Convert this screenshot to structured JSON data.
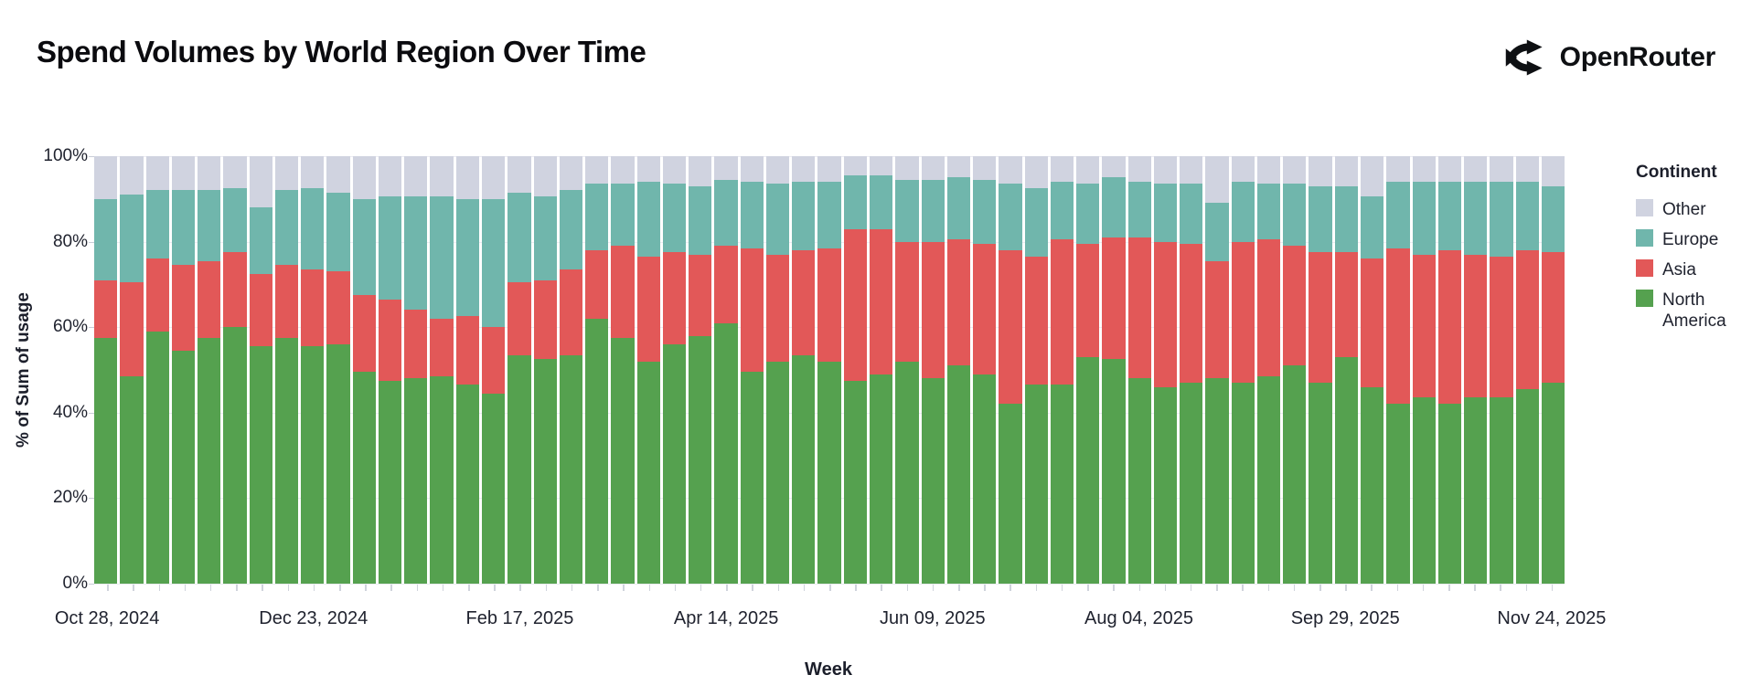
{
  "header": {
    "title": "Spend Volumes by World Region Over Time",
    "brand": "OpenRouter"
  },
  "legend": {
    "title": "Continent",
    "items": [
      {
        "key": "other",
        "label": "Other"
      },
      {
        "key": "europe",
        "label": "Europe"
      },
      {
        "key": "asia",
        "label": "Asia"
      },
      {
        "key": "north_america",
        "label": "North America"
      }
    ]
  },
  "chart_data": {
    "type": "bar",
    "stacked": true,
    "title": "Spend Volumes by World Region Over Time",
    "xlabel": "Week",
    "ylabel": "% of Sum of usage",
    "ylim": [
      0,
      100
    ],
    "grid": true,
    "legend_position": "right",
    "weeks_count": 57,
    "y_tick_labels": [
      "100%",
      "80%",
      "60%",
      "40%",
      "20%",
      "0%"
    ],
    "x_ticks": [
      {
        "index": 0,
        "label": "Oct 28, 2024"
      },
      {
        "index": 8,
        "label": "Dec 23, 2024"
      },
      {
        "index": 16,
        "label": "Feb 17, 2025"
      },
      {
        "index": 24,
        "label": "Apr 14, 2025"
      },
      {
        "index": 32,
        "label": "Jun 09, 2025"
      },
      {
        "index": 40,
        "label": "Aug 04, 2025"
      },
      {
        "index": 48,
        "label": "Sep 29, 2025"
      },
      {
        "index": 56,
        "label": "Nov 24, 2025"
      }
    ],
    "colors": {
      "north_america": "#55a14f",
      "asia": "#e25858",
      "europe": "#70b6ac",
      "other": "#d0d3e0"
    },
    "stack_order_bottom_to_top": [
      "north_america",
      "asia",
      "europe",
      "other"
    ],
    "series": [
      {
        "name": "North America",
        "key": "north_america",
        "values": [
          57.5,
          48.5,
          59,
          54.5,
          57.5,
          60,
          55.5,
          57.5,
          55.5,
          56,
          49.5,
          47.5,
          48,
          48.5,
          46.5,
          44.5,
          53.5,
          52.5,
          53.5,
          62,
          57.5,
          52,
          56,
          58,
          61,
          49.5,
          52,
          53.5,
          52,
          47.5,
          49,
          52,
          48,
          51,
          49,
          42,
          46.5,
          46.5,
          53,
          52.5,
          48,
          46,
          47,
          48,
          47,
          48.5,
          51,
          47,
          53,
          46,
          42,
          43.5,
          42,
          43.5,
          43.5,
          45.5,
          47
        ]
      },
      {
        "name": "Asia",
        "key": "asia",
        "values": [
          13.5,
          22,
          17,
          20,
          18,
          17.5,
          17,
          17,
          18,
          17,
          18,
          19,
          16,
          13.5,
          16,
          15.5,
          17,
          18.5,
          20,
          16,
          21.5,
          24.5,
          21.5,
          19,
          18,
          29,
          25,
          24.5,
          26.5,
          35.5,
          34,
          28,
          32,
          29.5,
          30.5,
          36,
          30,
          34,
          26.5,
          28.5,
          33,
          34,
          32.5,
          27.5,
          33,
          32,
          28,
          30.5,
          24.5,
          30,
          36.5,
          33.5,
          36,
          33.5,
          33,
          32.5,
          30.5
        ]
      },
      {
        "name": "Europe",
        "key": "europe",
        "values": [
          19,
          20.5,
          16,
          17.5,
          16.5,
          15,
          15.5,
          17.5,
          19,
          18.5,
          22.5,
          24,
          26.5,
          28.5,
          27.5,
          30,
          21,
          19.5,
          18.5,
          15.5,
          14.5,
          17.5,
          16,
          16,
          15.5,
          15.5,
          16.5,
          16,
          15.5,
          12.5,
          12.5,
          14.5,
          14.5,
          14.5,
          15,
          15.5,
          16,
          13.5,
          14,
          14,
          13,
          13.5,
          14,
          13.5,
          14,
          13,
          14.5,
          15.5,
          15.5,
          14.5,
          15.5,
          17,
          16,
          17,
          17.5,
          16,
          15.5
        ]
      },
      {
        "name": "Other",
        "key": "other",
        "values": [
          10,
          9,
          8,
          8,
          8,
          7.5,
          12,
          8,
          7.5,
          8.5,
          10,
          9.5,
          9.5,
          9.5,
          10,
          10,
          8.5,
          9.5,
          8,
          6.5,
          6.5,
          6,
          6.5,
          7,
          5.5,
          6,
          6.5,
          6,
          6,
          4.5,
          4.5,
          5.5,
          5.5,
          5,
          5.5,
          6.5,
          7.5,
          6,
          6.5,
          5,
          6,
          6.5,
          6.5,
          11,
          6,
          6.5,
          6.5,
          7,
          7,
          9.5,
          6,
          6,
          6,
          6,
          6,
          6,
          7
        ]
      }
    ]
  }
}
